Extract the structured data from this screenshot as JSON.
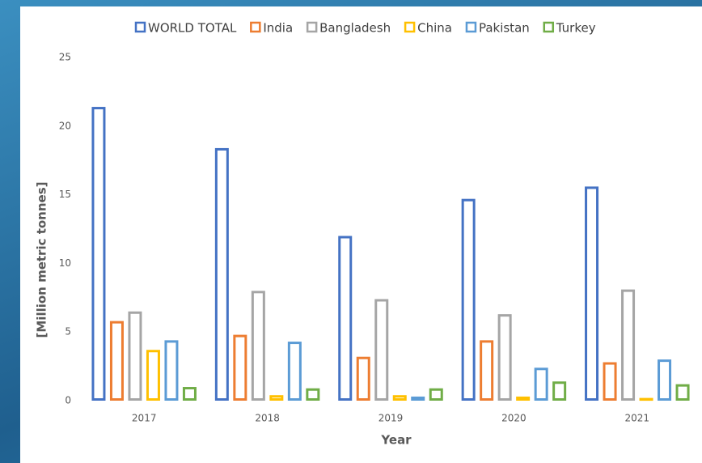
{
  "chart_data": {
    "type": "bar",
    "x_label": "Year",
    "y_label": "[Million metric tonnes]",
    "categories": [
      "2017",
      "2018",
      "2019",
      "2020",
      "2021"
    ],
    "series": [
      {
        "name": "WORLD TOTAL",
        "color": "#4472c4",
        "values": [
          21.4,
          18.4,
          12.0,
          14.7,
          15.6
        ]
      },
      {
        "name": "India",
        "color": "#ed7d31",
        "values": [
          5.8,
          4.8,
          3.2,
          4.4,
          2.8
        ]
      },
      {
        "name": "Bangladesh",
        "color": "#a5a5a5",
        "values": [
          6.5,
          8.0,
          7.4,
          6.3,
          8.1
        ]
      },
      {
        "name": "China",
        "color": "#ffc000",
        "values": [
          3.7,
          0.4,
          0.4,
          0.3,
          0.2
        ]
      },
      {
        "name": "Pakistan",
        "color": "#5b9bd5",
        "values": [
          4.4,
          4.3,
          0.3,
          2.4,
          3.0
        ]
      },
      {
        "name": "Turkey",
        "color": "#70ad47",
        "values": [
          1.0,
          0.9,
          0.9,
          1.4,
          1.2
        ]
      }
    ],
    "ylim": [
      0,
      25
    ],
    "yticks": [
      0,
      5,
      10,
      15,
      20,
      25
    ],
    "grid": false,
    "legend": "top"
  }
}
